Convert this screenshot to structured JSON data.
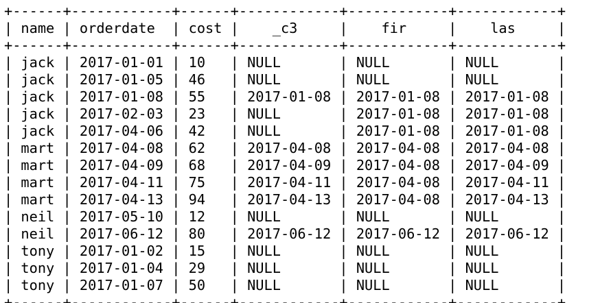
{
  "table": {
    "headers": [
      "name",
      "orderdate",
      "cost",
      "_c3",
      "fir",
      "las"
    ],
    "align": [
      "center",
      "center",
      "left",
      "center",
      "center",
      "center"
    ],
    "rows": [
      [
        "jack",
        "2017-01-01",
        "10",
        "NULL",
        "NULL",
        "NULL"
      ],
      [
        "jack",
        "2017-01-05",
        "46",
        "NULL",
        "NULL",
        "NULL"
      ],
      [
        "jack",
        "2017-01-08",
        "55",
        "2017-01-08",
        "2017-01-08",
        "2017-01-08"
      ],
      [
        "jack",
        "2017-02-03",
        "23",
        "NULL",
        "2017-01-08",
        "2017-01-08"
      ],
      [
        "jack",
        "2017-04-06",
        "42",
        "NULL",
        "2017-01-08",
        "2017-01-08"
      ],
      [
        "mart",
        "2017-04-08",
        "62",
        "2017-04-08",
        "2017-04-08",
        "2017-04-08"
      ],
      [
        "mart",
        "2017-04-09",
        "68",
        "2017-04-09",
        "2017-04-08",
        "2017-04-09"
      ],
      [
        "mart",
        "2017-04-11",
        "75",
        "2017-04-11",
        "2017-04-08",
        "2017-04-11"
      ],
      [
        "mart",
        "2017-04-13",
        "94",
        "2017-04-13",
        "2017-04-08",
        "2017-04-13"
      ],
      [
        "neil",
        "2017-05-10",
        "12",
        "NULL",
        "NULL",
        "NULL"
      ],
      [
        "neil",
        "2017-06-12",
        "80",
        "2017-06-12",
        "2017-06-12",
        "2017-06-12"
      ],
      [
        "tony",
        "2017-01-02",
        "15",
        "NULL",
        "NULL",
        "NULL"
      ],
      [
        "tony",
        "2017-01-04",
        "29",
        "NULL",
        "NULL",
        "NULL"
      ],
      [
        "tony",
        "2017-01-07",
        "50",
        "NULL",
        "NULL",
        "NULL"
      ]
    ]
  },
  "colors": {
    "background": "#ffffff",
    "text": "#000000"
  }
}
